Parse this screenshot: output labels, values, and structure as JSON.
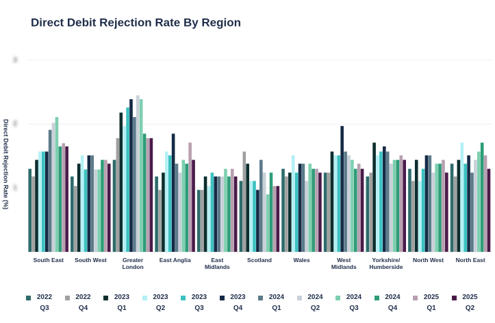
{
  "chart_data": {
    "type": "bar",
    "title": "Direct Debit Rejection Rate By Region",
    "y_label": "Direct Debit  Rejection Rate (%)",
    "categories": [
      "South East",
      "South West",
      "Greater London",
      "East Anglia",
      "East Midlands",
      "Scotland",
      "Wales",
      "West Midlands",
      "Yorkshire/ Humberside",
      "North West",
      "North East"
    ],
    "ylim": [
      0,
      3
    ],
    "yticks": [
      1,
      2,
      3
    ],
    "grid": true,
    "series": [
      {
        "name": "2022 Q3",
        "color": "#2e6b6b",
        "values": [
          1.3,
          1.18,
          1.44,
          1.18,
          0.97,
          1.11,
          1.3,
          1.24,
          1.18,
          1.3,
          1.38
        ]
      },
      {
        "name": "2022 Q4",
        "color": "#a0a0a0",
        "values": [
          1.18,
          1.03,
          1.78,
          0.97,
          0.97,
          1.57,
          1.18,
          1.24,
          1.24,
          1.11,
          1.18
        ]
      },
      {
        "name": "2023 Q1",
        "color": "#0d2e2e",
        "values": [
          1.44,
          1.38,
          2.18,
          1.24,
          1.18,
          1.38,
          1.24,
          1.57,
          1.71,
          1.44,
          1.44
        ]
      },
      {
        "name": "2023 Q2",
        "color": "#b3f0f5",
        "values": [
          1.57,
          1.51,
          1.97,
          1.57,
          1.03,
          1.11,
          1.51,
          1.51,
          1.51,
          1.11,
          1.71
        ]
      },
      {
        "name": "2023 Q3",
        "color": "#3cc1c1",
        "values": [
          1.57,
          1.29,
          2.26,
          1.51,
          1.24,
          1.11,
          1.24,
          1.51,
          1.57,
          1.3,
          1.38
        ]
      },
      {
        "name": "2023 Q4",
        "color": "#152a45",
        "values": [
          1.57,
          1.51,
          2.39,
          1.85,
          1.18,
          0.97,
          1.38,
          1.97,
          1.65,
          1.51,
          1.51
        ]
      },
      {
        "name": "2024 Q1",
        "color": "#5b7a8a",
        "values": [
          1.91,
          1.51,
          2.11,
          1.38,
          1.18,
          1.44,
          1.38,
          1.57,
          1.57,
          1.51,
          1.24
        ]
      },
      {
        "name": "2024 Q2",
        "color": "#c8d0d8",
        "values": [
          2.02,
          1.29,
          2.45,
          1.24,
          1.18,
          1.24,
          1.11,
          1.51,
          1.38,
          1.24,
          1.44
        ]
      },
      {
        "name": "2024 Q3",
        "color": "#7ecfb0",
        "values": [
          2.11,
          1.29,
          2.39,
          1.44,
          1.3,
          0.9,
          1.38,
          1.44,
          1.44,
          1.38,
          1.57
        ]
      },
      {
        "name": "2024 Q4",
        "color": "#2e9c78",
        "values": [
          1.65,
          1.44,
          1.85,
          1.38,
          1.18,
          1.24,
          1.3,
          1.3,
          1.44,
          1.38,
          1.71
        ]
      },
      {
        "name": "2025 Q1",
        "color": "#b8a0b0",
        "values": [
          1.7,
          1.44,
          1.78,
          1.71,
          1.3,
          1.03,
          1.3,
          1.38,
          1.51,
          1.44,
          1.51
        ]
      },
      {
        "name": "2025 Q2",
        "color": "#4a1a4a",
        "values": [
          1.65,
          1.38,
          1.78,
          1.44,
          1.18,
          1.03,
          1.24,
          1.3,
          1.44,
          1.24,
          1.3
        ]
      }
    ]
  }
}
